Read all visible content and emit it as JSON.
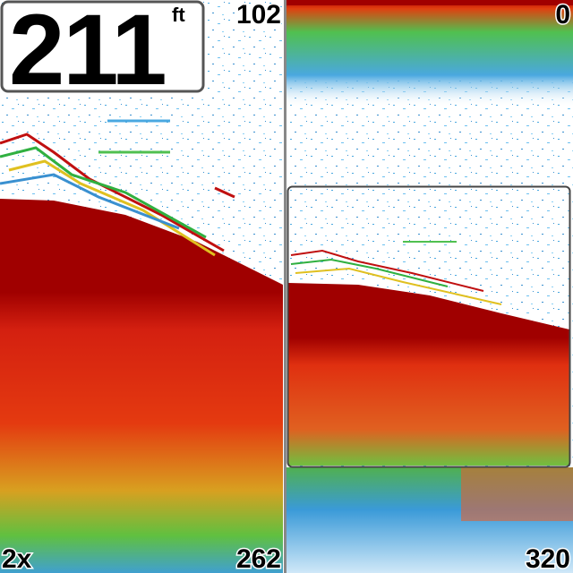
{
  "depth": {
    "value": 211,
    "unit": "ft"
  },
  "left_pane": {
    "range_top": 102,
    "range_bottom": 262,
    "zoom": "2x"
  },
  "right_pane": {
    "range_top": 0,
    "range_bottom": 320
  }
}
